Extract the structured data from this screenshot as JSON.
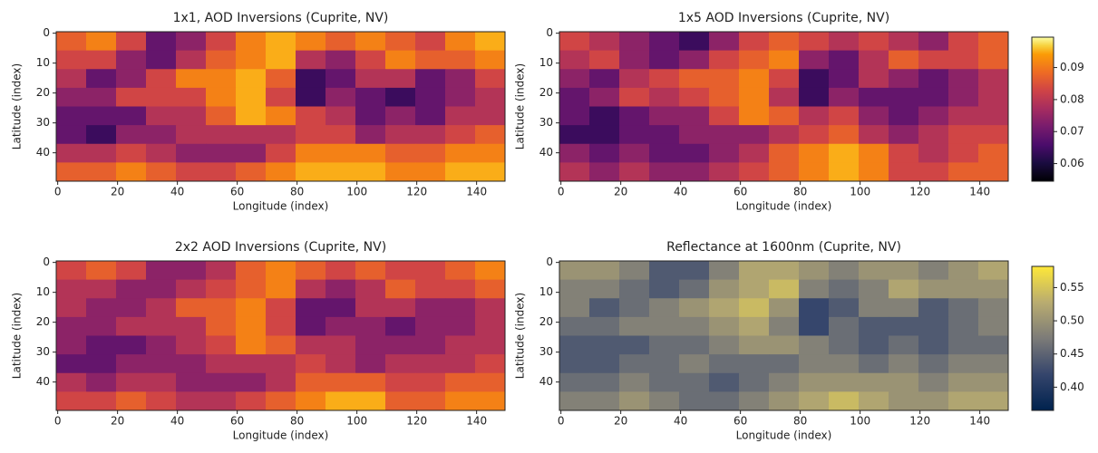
{
  "chart_data": [
    {
      "type": "heatmap",
      "title": "1x1, AOD Inversions (Cuprite, NV)",
      "x_label": "Longitude (index)",
      "y_label": "Latitude (index)",
      "colormap": "inferno",
      "xlim": [
        -0.5,
        149.5
      ],
      "ylim": [
        49.5,
        -0.5
      ],
      "xticks": [
        0,
        20,
        40,
        60,
        80,
        100,
        120,
        140
      ],
      "yticks": [
        0,
        10,
        20,
        30,
        40
      ],
      "clim": [
        0.0545,
        0.0995
      ],
      "values": [
        [
          0.087,
          0.091,
          0.083,
          0.069,
          0.074,
          0.083,
          0.091,
          0.095,
          0.091,
          0.087,
          0.091,
          0.087,
          0.083,
          0.091,
          0.095
        ],
        [
          0.083,
          0.083,
          0.074,
          0.069,
          0.079,
          0.087,
          0.091,
          0.095,
          0.079,
          0.074,
          0.083,
          0.091,
          0.087,
          0.087,
          0.091
        ],
        [
          0.079,
          0.069,
          0.074,
          0.083,
          0.091,
          0.091,
          0.095,
          0.087,
          0.064,
          0.069,
          0.079,
          0.079,
          0.069,
          0.074,
          0.083
        ],
        [
          0.074,
          0.074,
          0.083,
          0.083,
          0.083,
          0.091,
          0.095,
          0.083,
          0.064,
          0.074,
          0.069,
          0.064,
          0.069,
          0.074,
          0.079
        ],
        [
          0.069,
          0.069,
          0.069,
          0.079,
          0.079,
          0.087,
          0.095,
          0.091,
          0.083,
          0.079,
          0.069,
          0.074,
          0.069,
          0.079,
          0.079
        ],
        [
          0.069,
          0.064,
          0.074,
          0.074,
          0.079,
          0.079,
          0.079,
          0.079,
          0.083,
          0.083,
          0.074,
          0.079,
          0.079,
          0.083,
          0.087
        ],
        [
          0.079,
          0.079,
          0.083,
          0.079,
          0.074,
          0.074,
          0.074,
          0.083,
          0.091,
          0.091,
          0.091,
          0.087,
          0.087,
          0.091,
          0.091
        ],
        [
          0.087,
          0.087,
          0.091,
          0.087,
          0.083,
          0.083,
          0.087,
          0.091,
          0.095,
          0.095,
          0.095,
          0.091,
          0.091,
          0.095,
          0.095
        ]
      ]
    },
    {
      "type": "heatmap",
      "title": "1x5 AOD Inversions (Cuprite, NV)",
      "x_label": "Longitude (index)",
      "y_label": "Latitude (index)",
      "colormap": "inferno",
      "xlim": [
        -0.5,
        149.5
      ],
      "ylim": [
        49.5,
        -0.5
      ],
      "xticks": [
        0,
        20,
        40,
        60,
        80,
        100,
        120,
        140
      ],
      "yticks": [
        0,
        10,
        20,
        30,
        40
      ],
      "clim": [
        0.0545,
        0.0995
      ],
      "colorbar_ticks": [
        0.06,
        0.07,
        0.08,
        0.09
      ],
      "values": [
        [
          0.083,
          0.079,
          0.074,
          0.069,
          0.064,
          0.074,
          0.083,
          0.087,
          0.083,
          0.079,
          0.083,
          0.079,
          0.074,
          0.083,
          0.087
        ],
        [
          0.079,
          0.083,
          0.074,
          0.069,
          0.074,
          0.083,
          0.087,
          0.091,
          0.074,
          0.069,
          0.079,
          0.087,
          0.083,
          0.083,
          0.087
        ],
        [
          0.074,
          0.069,
          0.079,
          0.083,
          0.087,
          0.087,
          0.091,
          0.083,
          0.064,
          0.069,
          0.079,
          0.074,
          0.069,
          0.074,
          0.079
        ],
        [
          0.069,
          0.074,
          0.083,
          0.079,
          0.083,
          0.087,
          0.091,
          0.079,
          0.064,
          0.074,
          0.069,
          0.069,
          0.069,
          0.074,
          0.079
        ],
        [
          0.069,
          0.064,
          0.069,
          0.074,
          0.074,
          0.083,
          0.091,
          0.087,
          0.079,
          0.083,
          0.074,
          0.069,
          0.074,
          0.079,
          0.079
        ],
        [
          0.064,
          0.064,
          0.069,
          0.069,
          0.074,
          0.074,
          0.074,
          0.079,
          0.083,
          0.087,
          0.079,
          0.074,
          0.079,
          0.083,
          0.083
        ],
        [
          0.074,
          0.069,
          0.074,
          0.069,
          0.069,
          0.074,
          0.079,
          0.087,
          0.091,
          0.095,
          0.091,
          0.083,
          0.079,
          0.083,
          0.087
        ],
        [
          0.079,
          0.074,
          0.079,
          0.074,
          0.074,
          0.079,
          0.083,
          0.087,
          0.091,
          0.095,
          0.091,
          0.083,
          0.083,
          0.087,
          0.087
        ]
      ]
    },
    {
      "type": "heatmap",
      "title": "2x2 AOD Inversions (Cuprite, NV)",
      "x_label": "Longitude (index)",
      "y_label": "Latitude (index)",
      "colormap": "inferno",
      "xlim": [
        -0.5,
        149.5
      ],
      "ylim": [
        49.5,
        -0.5
      ],
      "xticks": [
        0,
        20,
        40,
        60,
        80,
        100,
        120,
        140
      ],
      "yticks": [
        0,
        10,
        20,
        30,
        40
      ],
      "clim": [
        0.0545,
        0.0995
      ],
      "values": [
        [
          0.083,
          0.087,
          0.083,
          0.074,
          0.074,
          0.079,
          0.087,
          0.091,
          0.087,
          0.083,
          0.087,
          0.083,
          0.083,
          0.087,
          0.091
        ],
        [
          0.079,
          0.079,
          0.074,
          0.074,
          0.079,
          0.083,
          0.087,
          0.091,
          0.079,
          0.074,
          0.079,
          0.087,
          0.083,
          0.083,
          0.087
        ],
        [
          0.079,
          0.074,
          0.074,
          0.079,
          0.087,
          0.087,
          0.091,
          0.083,
          0.069,
          0.069,
          0.079,
          0.079,
          0.074,
          0.074,
          0.079
        ],
        [
          0.074,
          0.074,
          0.079,
          0.079,
          0.079,
          0.087,
          0.091,
          0.083,
          0.069,
          0.074,
          0.074,
          0.069,
          0.074,
          0.074,
          0.079
        ],
        [
          0.074,
          0.069,
          0.069,
          0.074,
          0.079,
          0.083,
          0.091,
          0.087,
          0.079,
          0.079,
          0.074,
          0.074,
          0.074,
          0.079,
          0.079
        ],
        [
          0.069,
          0.069,
          0.074,
          0.074,
          0.074,
          0.079,
          0.079,
          0.079,
          0.083,
          0.079,
          0.074,
          0.079,
          0.079,
          0.079,
          0.083
        ],
        [
          0.079,
          0.074,
          0.079,
          0.079,
          0.074,
          0.074,
          0.074,
          0.079,
          0.087,
          0.087,
          0.087,
          0.083,
          0.083,
          0.087,
          0.087
        ],
        [
          0.083,
          0.083,
          0.087,
          0.083,
          0.079,
          0.079,
          0.083,
          0.087,
          0.091,
          0.095,
          0.095,
          0.087,
          0.087,
          0.091,
          0.091
        ]
      ]
    },
    {
      "type": "heatmap",
      "title": "Reflectance at 1600nm (Cuprite, NV)",
      "x_label": "Longitude (index)",
      "y_label": "Latitude (index)",
      "colormap": "cividis",
      "xlim": [
        -0.5,
        149.5
      ],
      "ylim": [
        49.5,
        -0.5
      ],
      "xticks": [
        0,
        20,
        40,
        60,
        80,
        100,
        120,
        140
      ],
      "yticks": [
        0,
        10,
        20,
        30,
        40
      ],
      "clim": [
        0.365,
        0.582
      ],
      "colorbar_ticks": [
        {
          "value": 0.4,
          "label": "0.40"
        },
        0.45,
        {
          "value": 0.5,
          "label": "0.50"
        },
        0.55
      ],
      "values": [
        [
          0.5,
          0.5,
          0.48,
          0.44,
          0.44,
          0.48,
          0.52,
          0.52,
          0.5,
          0.48,
          0.5,
          0.5,
          0.48,
          0.5,
          0.52
        ],
        [
          0.48,
          0.48,
          0.46,
          0.44,
          0.46,
          0.5,
          0.52,
          0.54,
          0.48,
          0.46,
          0.48,
          0.52,
          0.5,
          0.5,
          0.5
        ],
        [
          0.48,
          0.44,
          0.46,
          0.48,
          0.5,
          0.52,
          0.54,
          0.5,
          0.42,
          0.44,
          0.48,
          0.48,
          0.44,
          0.46,
          0.48
        ],
        [
          0.46,
          0.46,
          0.48,
          0.48,
          0.48,
          0.5,
          0.52,
          0.48,
          0.42,
          0.46,
          0.44,
          0.44,
          0.44,
          0.46,
          0.48
        ],
        [
          0.44,
          0.44,
          0.44,
          0.46,
          0.46,
          0.48,
          0.5,
          0.5,
          0.48,
          0.46,
          0.44,
          0.46,
          0.44,
          0.46,
          0.46
        ],
        [
          0.44,
          0.44,
          0.46,
          0.46,
          0.48,
          0.46,
          0.46,
          0.46,
          0.48,
          0.48,
          0.46,
          0.48,
          0.46,
          0.48,
          0.48
        ],
        [
          0.46,
          0.46,
          0.48,
          0.46,
          0.46,
          0.44,
          0.46,
          0.48,
          0.5,
          0.5,
          0.5,
          0.5,
          0.48,
          0.5,
          0.5
        ],
        [
          0.48,
          0.48,
          0.5,
          0.48,
          0.46,
          0.46,
          0.48,
          0.5,
          0.52,
          0.54,
          0.52,
          0.5,
          0.5,
          0.52,
          0.52
        ]
      ]
    }
  ]
}
